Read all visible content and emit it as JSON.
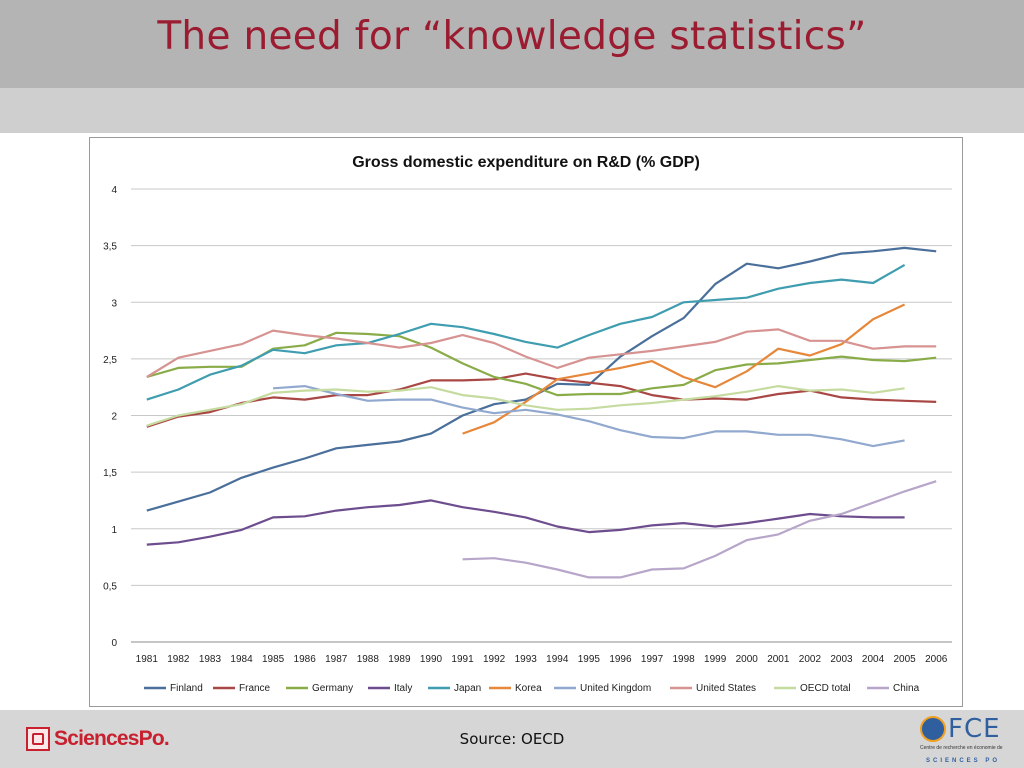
{
  "slide": {
    "title": "The need for “knowledge statistics”",
    "source": "Source: OECD",
    "logo_left_text": "SciencesPo.",
    "logo_right_text": "FCE",
    "logo_right_sub": "Centre de recherche en économie de",
    "logo_right_sub2": "SCIENCES PO",
    "colors": {
      "title": "#9b1b30",
      "title_band": "#b4b4b4",
      "sub_band": "#cfcfcf",
      "footer_band": "#d6d6d6"
    }
  },
  "chart_data": {
    "type": "line",
    "title": "Gross domestic expenditure on R&D (% GDP)",
    "xlabel": "",
    "ylabel": "",
    "ylim": [
      0,
      4
    ],
    "yticks": [
      "0",
      "0,5",
      "1",
      "1,5",
      "2",
      "2,5",
      "3",
      "3,5",
      "4"
    ],
    "grid": true,
    "legend_position": "bottom",
    "x": [
      "1981",
      "1982",
      "1983",
      "1984",
      "1985",
      "1986",
      "1987",
      "1988",
      "1989",
      "1990",
      "1991",
      "1992",
      "1993",
      "1994",
      "1995",
      "1996",
      "1997",
      "1998",
      "1999",
      "2000",
      "2001",
      "2002",
      "2003",
      "2004",
      "2005",
      "2006"
    ],
    "series": [
      {
        "name": "Finland",
        "color": "#4a6f9a",
        "values": [
          1.16,
          1.24,
          1.32,
          1.45,
          1.54,
          1.62,
          1.71,
          1.74,
          1.77,
          1.84,
          2.0,
          2.1,
          2.14,
          2.28,
          2.27,
          2.52,
          2.7,
          2.86,
          3.16,
          3.34,
          3.3,
          3.36,
          3.43,
          3.45,
          3.48,
          3.45
        ]
      },
      {
        "name": "France",
        "color": "#a94744",
        "values": [
          1.9,
          1.99,
          2.03,
          2.11,
          2.16,
          2.14,
          2.18,
          2.18,
          2.23,
          2.31,
          2.31,
          2.32,
          2.37,
          2.32,
          2.29,
          2.26,
          2.18,
          2.14,
          2.15,
          2.14,
          2.19,
          2.22,
          2.16,
          2.14,
          2.13,
          2.12
        ]
      },
      {
        "name": "Germany",
        "color": "#8aac48",
        "values": [
          2.34,
          2.42,
          2.43,
          2.43,
          2.59,
          2.62,
          2.73,
          2.72,
          2.7,
          2.6,
          2.46,
          2.34,
          2.28,
          2.18,
          2.19,
          2.19,
          2.24,
          2.27,
          2.4,
          2.45,
          2.46,
          2.49,
          2.52,
          2.49,
          2.48,
          2.51
        ]
      },
      {
        "name": "Italy",
        "color": "#6d4d8e",
        "values": [
          0.86,
          0.88,
          0.93,
          0.99,
          1.1,
          1.11,
          1.16,
          1.19,
          1.21,
          1.25,
          1.19,
          1.15,
          1.1,
          1.02,
          0.97,
          0.99,
          1.03,
          1.05,
          1.02,
          1.05,
          1.09,
          1.13,
          1.11,
          1.1,
          1.1,
          null
        ]
      },
      {
        "name": "Japan",
        "color": "#3f9db0",
        "values": [
          2.14,
          2.23,
          2.36,
          2.44,
          2.58,
          2.55,
          2.62,
          2.64,
          2.72,
          2.81,
          2.78,
          2.72,
          2.65,
          2.6,
          2.71,
          2.81,
          2.87,
          3.0,
          3.02,
          3.04,
          3.12,
          3.17,
          3.2,
          3.17,
          3.33,
          null
        ]
      },
      {
        "name": "Korea",
        "color": "#e6873a",
        "values": [
          null,
          null,
          null,
          null,
          null,
          null,
          null,
          null,
          null,
          null,
          1.84,
          1.94,
          2.12,
          2.32,
          2.37,
          2.42,
          2.48,
          2.34,
          2.25,
          2.39,
          2.59,
          2.53,
          2.63,
          2.85,
          2.98,
          null
        ]
      },
      {
        "name": "United Kingdom",
        "color": "#92a9cf",
        "values": [
          null,
          null,
          null,
          null,
          2.24,
          2.26,
          2.19,
          2.13,
          2.14,
          2.14,
          2.07,
          2.02,
          2.05,
          2.01,
          1.95,
          1.87,
          1.81,
          1.8,
          1.86,
          1.86,
          1.83,
          1.83,
          1.79,
          1.73,
          1.78,
          null
        ]
      },
      {
        "name": "United States",
        "color": "#d69391",
        "values": [
          2.34,
          2.51,
          2.57,
          2.63,
          2.75,
          2.71,
          2.68,
          2.64,
          2.6,
          2.64,
          2.71,
          2.64,
          2.52,
          2.42,
          2.51,
          2.54,
          2.57,
          2.61,
          2.65,
          2.74,
          2.76,
          2.66,
          2.66,
          2.59,
          2.61,
          2.61
        ]
      },
      {
        "name": "OECD total",
        "color": "#c5dba0",
        "values": [
          1.91,
          2.0,
          2.05,
          2.1,
          2.2,
          2.22,
          2.23,
          2.21,
          2.22,
          2.25,
          2.18,
          2.15,
          2.09,
          2.05,
          2.06,
          2.09,
          2.11,
          2.14,
          2.17,
          2.21,
          2.26,
          2.22,
          2.23,
          2.2,
          2.24,
          null
        ]
      },
      {
        "name": "China",
        "color": "#b7a6c9",
        "values": [
          null,
          null,
          null,
          null,
          null,
          null,
          null,
          null,
          null,
          null,
          0.73,
          0.74,
          0.7,
          0.64,
          0.57,
          0.57,
          0.64,
          0.65,
          0.76,
          0.9,
          0.95,
          1.07,
          1.13,
          1.23,
          1.33,
          1.42
        ]
      }
    ]
  }
}
